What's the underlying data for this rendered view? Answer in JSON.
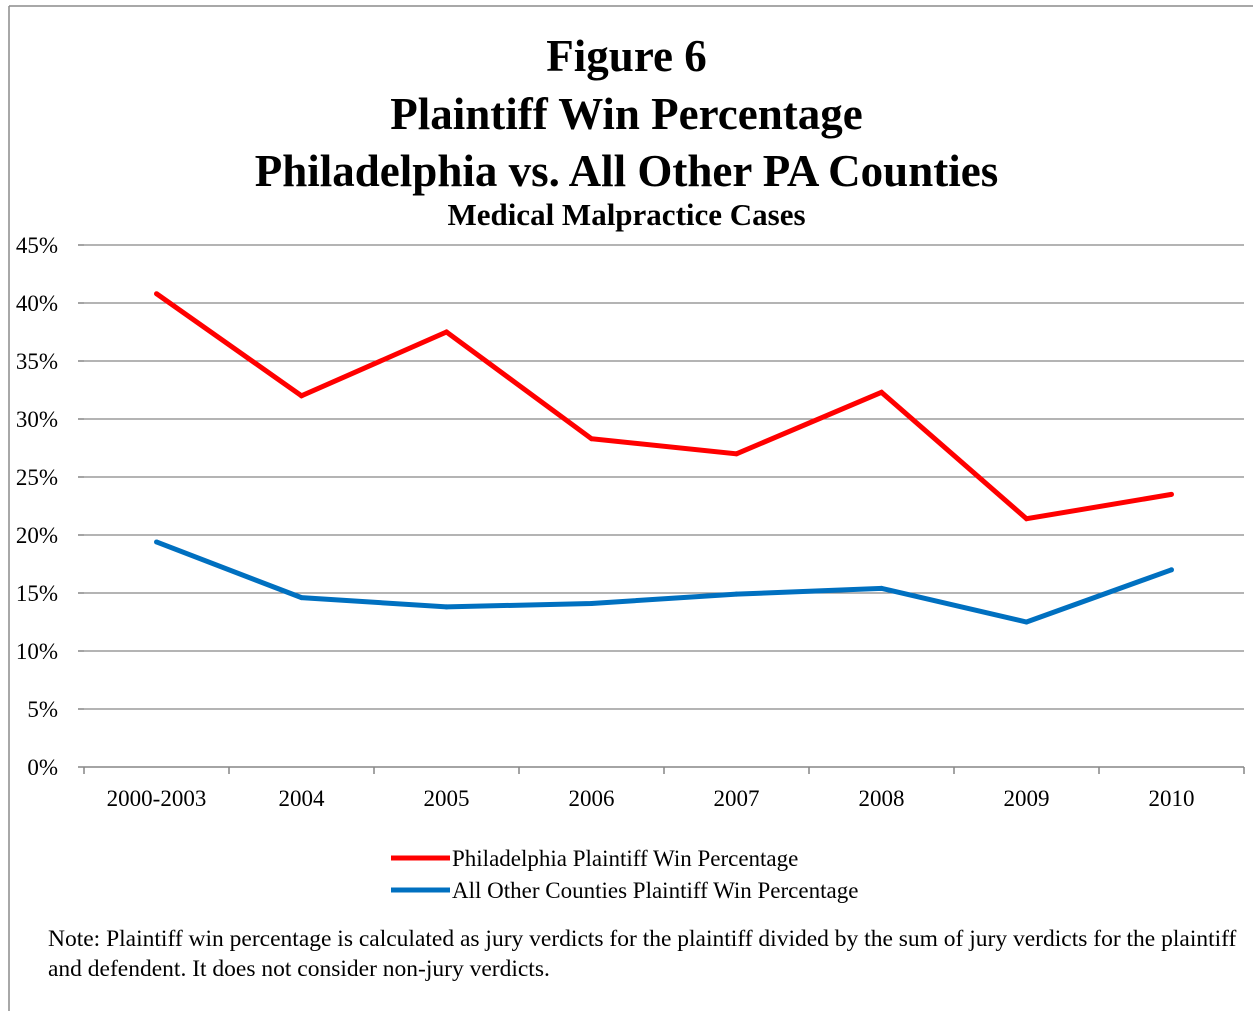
{
  "chart_data": {
    "type": "line",
    "title": "Figure 6",
    "subtitle_lines": [
      "Plaintiff Win Percentage",
      "Philadelphia vs. All Other PA Counties",
      "Medical Malpractice Cases"
    ],
    "categories": [
      "2000-2003",
      "2004",
      "2005",
      "2006",
      "2007",
      "2008",
      "2009",
      "2010"
    ],
    "series": [
      {
        "name": "Philadelphia Plaintiff Win Percentage",
        "color": "#ff0000",
        "values": [
          40.8,
          32.0,
          37.5,
          28.3,
          27.0,
          32.3,
          21.4,
          23.5
        ]
      },
      {
        "name": "All Other Counties Plaintiff Win Percentage",
        "color": "#0070c0",
        "values": [
          19.4,
          14.6,
          13.8,
          14.1,
          14.9,
          15.4,
          12.5,
          17.0
        ]
      }
    ],
    "ylim": [
      0,
      45
    ],
    "yticks": [
      "0%",
      "5%",
      "10%",
      "15%",
      "20%",
      "25%",
      "30%",
      "35%",
      "40%",
      "45%"
    ],
    "grid": true,
    "legend": "bottom",
    "xlabel": "",
    "ylabel": ""
  },
  "note": "Note: Plaintiff win percentage is calculated as jury verdicts for the plaintiff divided by the sum of jury verdicts for the plaintiff and defendent.  It does not consider non-jury verdicts."
}
